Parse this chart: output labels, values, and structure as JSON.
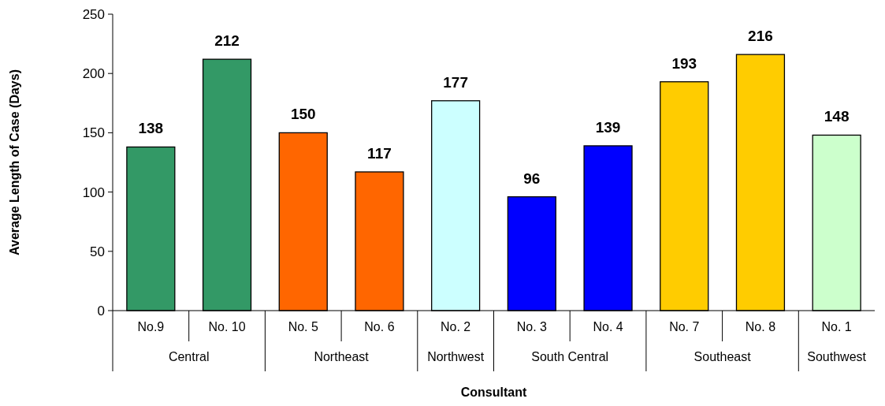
{
  "chart_data": {
    "type": "bar",
    "categories": [
      "No.9",
      "No. 10",
      "No. 5",
      "No. 6",
      "No. 2",
      "No. 3",
      "No. 4",
      "No. 7",
      "No. 8",
      "No. 1"
    ],
    "values": [
      138,
      212,
      150,
      117,
      177,
      96,
      139,
      193,
      216,
      148
    ],
    "colors": [
      "#339966",
      "#339966",
      "#ff6600",
      "#ff6600",
      "#ccffff",
      "#0000ff",
      "#0000ff",
      "#ffcc00",
      "#ffcc00",
      "#ccffcc"
    ],
    "annotations": [
      "Central",
      "Northeast",
      "Northwest",
      "South Central",
      "Southeast",
      "Southwest"
    ],
    "xlabel": "Consultant",
    "ylabel": "Average Length of Case (Days)",
    "ylim": [
      0,
      250
    ],
    "yticks": [
      0,
      50,
      100,
      150,
      200,
      250
    ],
    "data_labels": true
  }
}
